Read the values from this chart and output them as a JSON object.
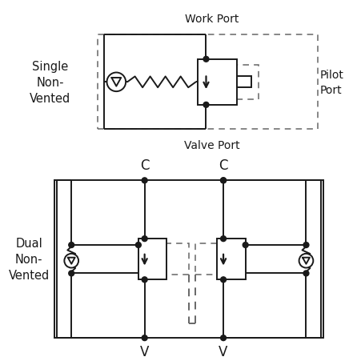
{
  "bg_color": "#ffffff",
  "line_color": "#1a1a1a",
  "dash_color": "#666666",
  "dot_color": "#1a1a1a",
  "text_color": "#1a1a1a",
  "top_label": "Single\nNon-\nVented",
  "bot_label": "Dual\nNon-\nVented",
  "work_port_label": "Work Port",
  "valve_port_label": "Valve Port",
  "pilot_port_label": "Pilot\nPort",
  "c_label": "C",
  "v_label": "V",
  "lw": 1.4,
  "dlw": 1.1,
  "dot_r": 3.5
}
